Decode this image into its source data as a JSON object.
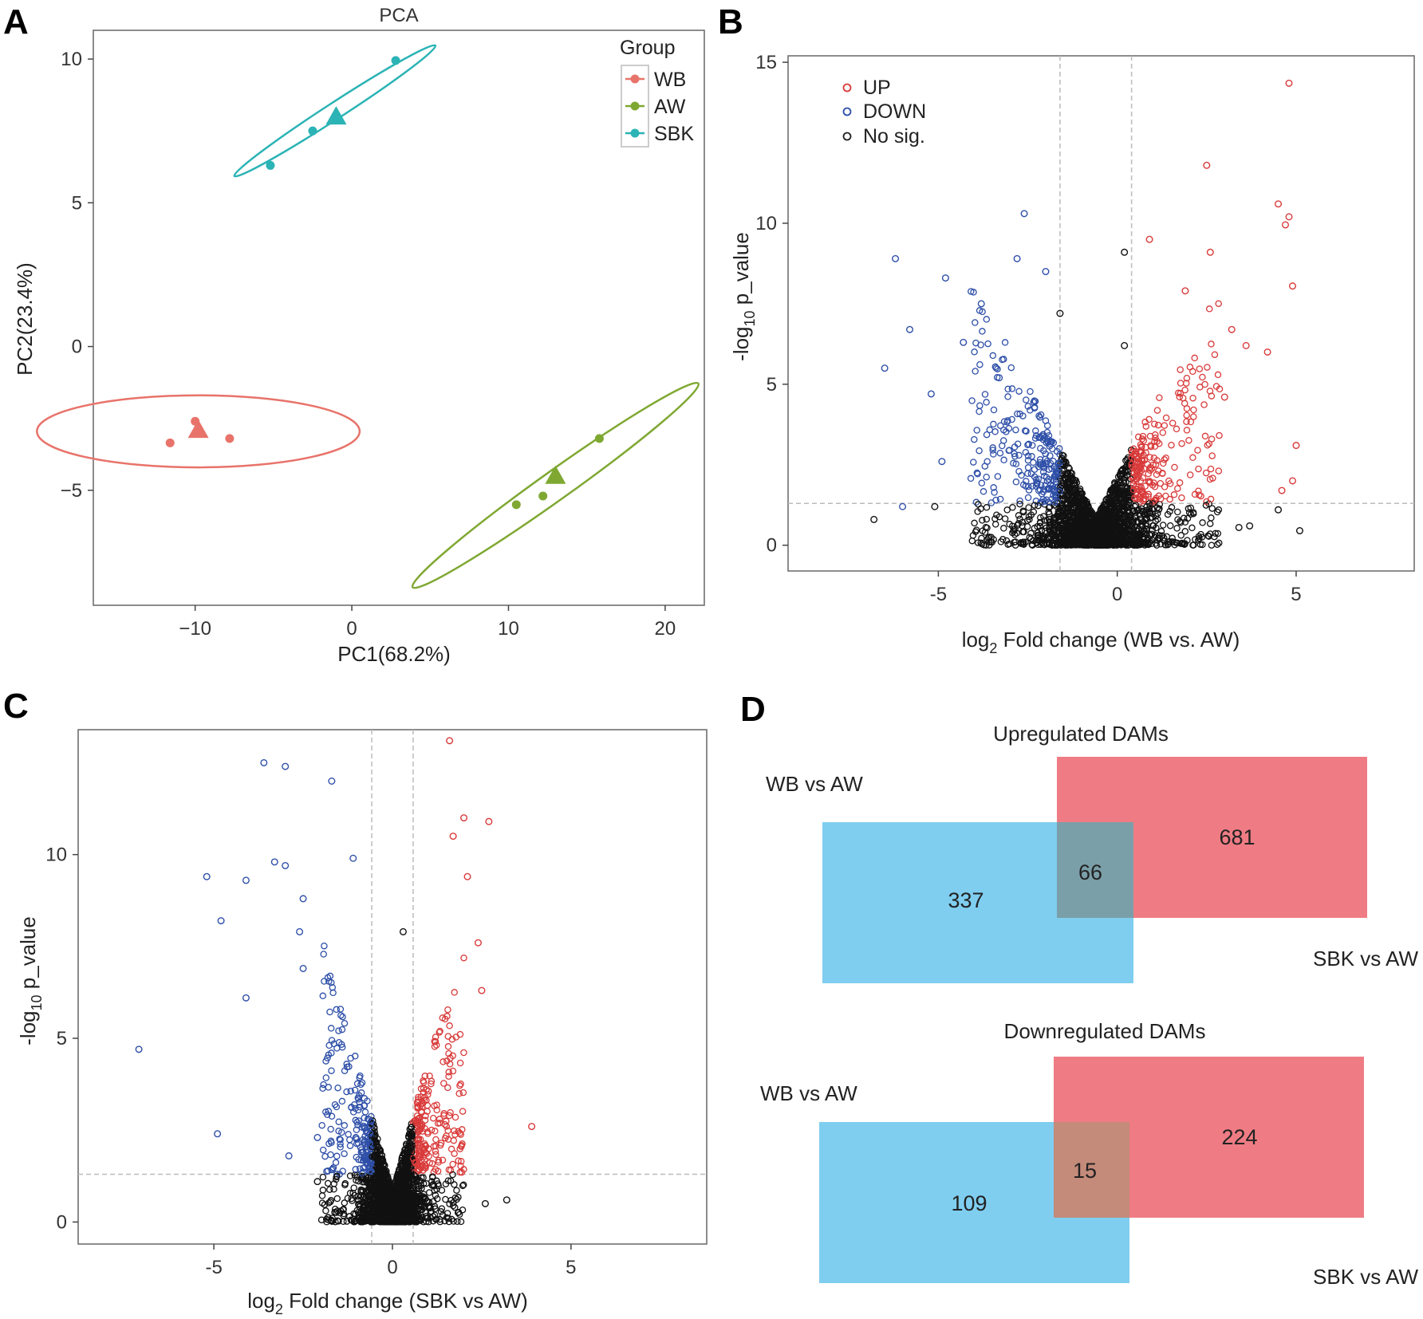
{
  "panel_labels": [
    "A",
    "B",
    "C",
    "D"
  ],
  "chart_data": [
    {
      "panel": "A",
      "type": "scatter",
      "title": "PCA",
      "xlabel": "PC1(68.2%)",
      "ylabel": "PC2(23.4%)",
      "xlim": [
        -16.5,
        22.5
      ],
      "ylim": [
        -9,
        11
      ],
      "xticks": [
        -10,
        0,
        10,
        20
      ],
      "yticks": [
        -5,
        0,
        5,
        10
      ],
      "xtick_labels": [
        "−10",
        "0",
        "10",
        "20"
      ],
      "ytick_labels": [
        "−5",
        "0",
        "5",
        "10"
      ],
      "legend_title": "Group",
      "legend_position": "top-right",
      "series": [
        {
          "name": "WB",
          "color": "#E8736A",
          "points": [
            [
              -10,
              -2.6
            ],
            [
              -11.6,
              -3.35
            ],
            [
              -7.8,
              -3.2
            ]
          ],
          "centroid": [
            -9.8,
            -2.9
          ],
          "ellipse": {
            "center": [
              -9.8,
              -2.95
            ],
            "rx": 10.3,
            "ry": 2.3,
            "angle": 0
          }
        },
        {
          "name": "AW",
          "color": "#7FA832",
          "points": [
            [
              15.8,
              -3.2
            ],
            [
              12.2,
              -5.2
            ],
            [
              10.5,
              -5.5
            ]
          ],
          "centroid": [
            13,
            -4.5
          ],
          "ellipse": {
            "center": [
              13.0,
              -4.83
            ],
            "rx": 11.2,
            "ry": 0.93,
            "angle": 35.5
          }
        },
        {
          "name": "SBK",
          "color": "#2BB3B5",
          "points": [
            [
              2.8,
              9.95
            ],
            [
              -2.5,
              7.5
            ],
            [
              -5.2,
              6.3
            ]
          ],
          "centroid": [
            -1,
            8
          ],
          "ellipse": {
            "center": [
              -1.08,
              8.2
            ],
            "rx": 7.65,
            "ry": 0.52,
            "angle": 33
          }
        }
      ]
    },
    {
      "panel": "B",
      "type": "scatter",
      "xlabel_parts": [
        "log",
        "2",
        " Fold change (WB vs. AW)"
      ],
      "ylabel_parts": [
        "-log",
        "10",
        " p_value"
      ],
      "xlim": [
        -9.2,
        8.3
      ],
      "ylim": [
        -0.8,
        15.2
      ],
      "xticks": [
        -5,
        0,
        5
      ],
      "yticks": [
        0,
        5,
        10,
        15
      ],
      "xtick_labels": [
        "-5",
        "0",
        "5"
      ],
      "ytick_labels": [
        "0",
        "5",
        "10",
        "15"
      ],
      "vlines": [
        -1.6,
        0.4
      ],
      "hline": 1.3,
      "legend_position": "top-left",
      "legend": [
        {
          "name": "UP",
          "color": "#D93A3A"
        },
        {
          "name": "DOWN",
          "color": "#2E4FA8"
        },
        {
          "name": "No sig.",
          "color": "#222222"
        }
      ],
      "outliers": {
        "up": [
          [
            4.8,
            14.35
          ],
          [
            2.5,
            11.8
          ],
          [
            4.5,
            10.6
          ],
          [
            4.8,
            10.2
          ],
          [
            4.7,
            9.95
          ],
          [
            0.9,
            9.5
          ],
          [
            2.6,
            9.1
          ],
          [
            4.9,
            8.05
          ],
          [
            1.9,
            7.9
          ],
          [
            3.2,
            6.7
          ],
          [
            4.2,
            6.0
          ],
          [
            5.0,
            3.1
          ],
          [
            4.9,
            2.0
          ],
          [
            4.6,
            1.7
          ],
          [
            3.6,
            6.2
          ],
          [
            3.0,
            4.6
          ]
        ],
        "down": [
          [
            -2.6,
            10.3
          ],
          [
            -6.2,
            8.9
          ],
          [
            -2.8,
            8.9
          ],
          [
            -4.8,
            8.3
          ],
          [
            -2.0,
            8.5
          ],
          [
            -3.8,
            7.5
          ],
          [
            -6.5,
            5.5
          ],
          [
            -5.8,
            6.7
          ],
          [
            -4.3,
            6.3
          ],
          [
            -3.3,
            5.2
          ],
          [
            -6.0,
            1.2
          ],
          [
            -4.9,
            2.6
          ],
          [
            -5.2,
            4.7
          ]
        ],
        "ns": [
          [
            0.2,
            9.1
          ],
          [
            -1.6,
            7.2
          ],
          [
            0.2,
            6.2
          ],
          [
            -6.8,
            0.8
          ],
          [
            5.1,
            0.45
          ],
          [
            4.5,
            1.1
          ],
          [
            3.7,
            0.6
          ],
          [
            3.4,
            0.55
          ],
          [
            -5.1,
            1.2
          ]
        ]
      }
    },
    {
      "panel": "C",
      "type": "scatter",
      "xlabel_parts": [
        "log",
        "2",
        " Fold change (SBK vs AW)"
      ],
      "ylabel_parts": [
        "-log",
        "10",
        " p_value"
      ],
      "xlim": [
        -8.8,
        8.8
      ],
      "ylim": [
        -0.6,
        13.4
      ],
      "xticks": [
        -5,
        0,
        5
      ],
      "yticks": [
        0,
        5,
        10
      ],
      "xtick_labels": [
        "-5",
        "0",
        "5"
      ],
      "ytick_labels": [
        "0",
        "5",
        "10"
      ],
      "vlines": [
        -0.58,
        0.58
      ],
      "hline": 1.3,
      "outliers": {
        "up": [
          [
            1.6,
            13.1
          ],
          [
            2.0,
            11.0
          ],
          [
            2.7,
            10.9
          ],
          [
            1.7,
            10.5
          ],
          [
            2.1,
            9.4
          ],
          [
            3.9,
            2.6
          ],
          [
            2.5,
            6.3
          ],
          [
            2.4,
            7.6
          ]
        ],
        "down": [
          [
            -3.6,
            12.5
          ],
          [
            -3.0,
            12.4
          ],
          [
            -1.7,
            12.0
          ],
          [
            -5.2,
            9.4
          ],
          [
            -4.1,
            9.3
          ],
          [
            -3.3,
            9.8
          ],
          [
            -3.0,
            9.7
          ],
          [
            -1.1,
            9.9
          ],
          [
            -2.5,
            8.8
          ],
          [
            -4.8,
            8.2
          ],
          [
            -2.6,
            7.9
          ],
          [
            -4.1,
            6.1
          ],
          [
            -2.5,
            6.9
          ],
          [
            -7.1,
            4.7
          ],
          [
            -4.9,
            2.4
          ],
          [
            -2.9,
            1.8
          ],
          [
            -2.1,
            2.3
          ]
        ],
        "ns": [
          [
            0.3,
            7.9
          ],
          [
            3.2,
            0.6
          ],
          [
            2.6,
            0.5
          ],
          [
            -2.1,
            1.1
          ]
        ]
      }
    }
  ],
  "venn": {
    "panel": "D",
    "left_color": "#7FCEF0",
    "right_color": "#EF7C84",
    "upregulated": {
      "title": "Upregulated DAMs",
      "left_label": "WB vs AW",
      "right_label": "SBK vs AW",
      "left_only": "337",
      "overlap": "66",
      "right_only": "681"
    },
    "downregulated": {
      "title": "Downregulated DAMs",
      "left_label": "WB vs AW",
      "right_label": "SBK vs AW",
      "left_only": "109",
      "overlap": "15",
      "right_only": "224"
    }
  }
}
